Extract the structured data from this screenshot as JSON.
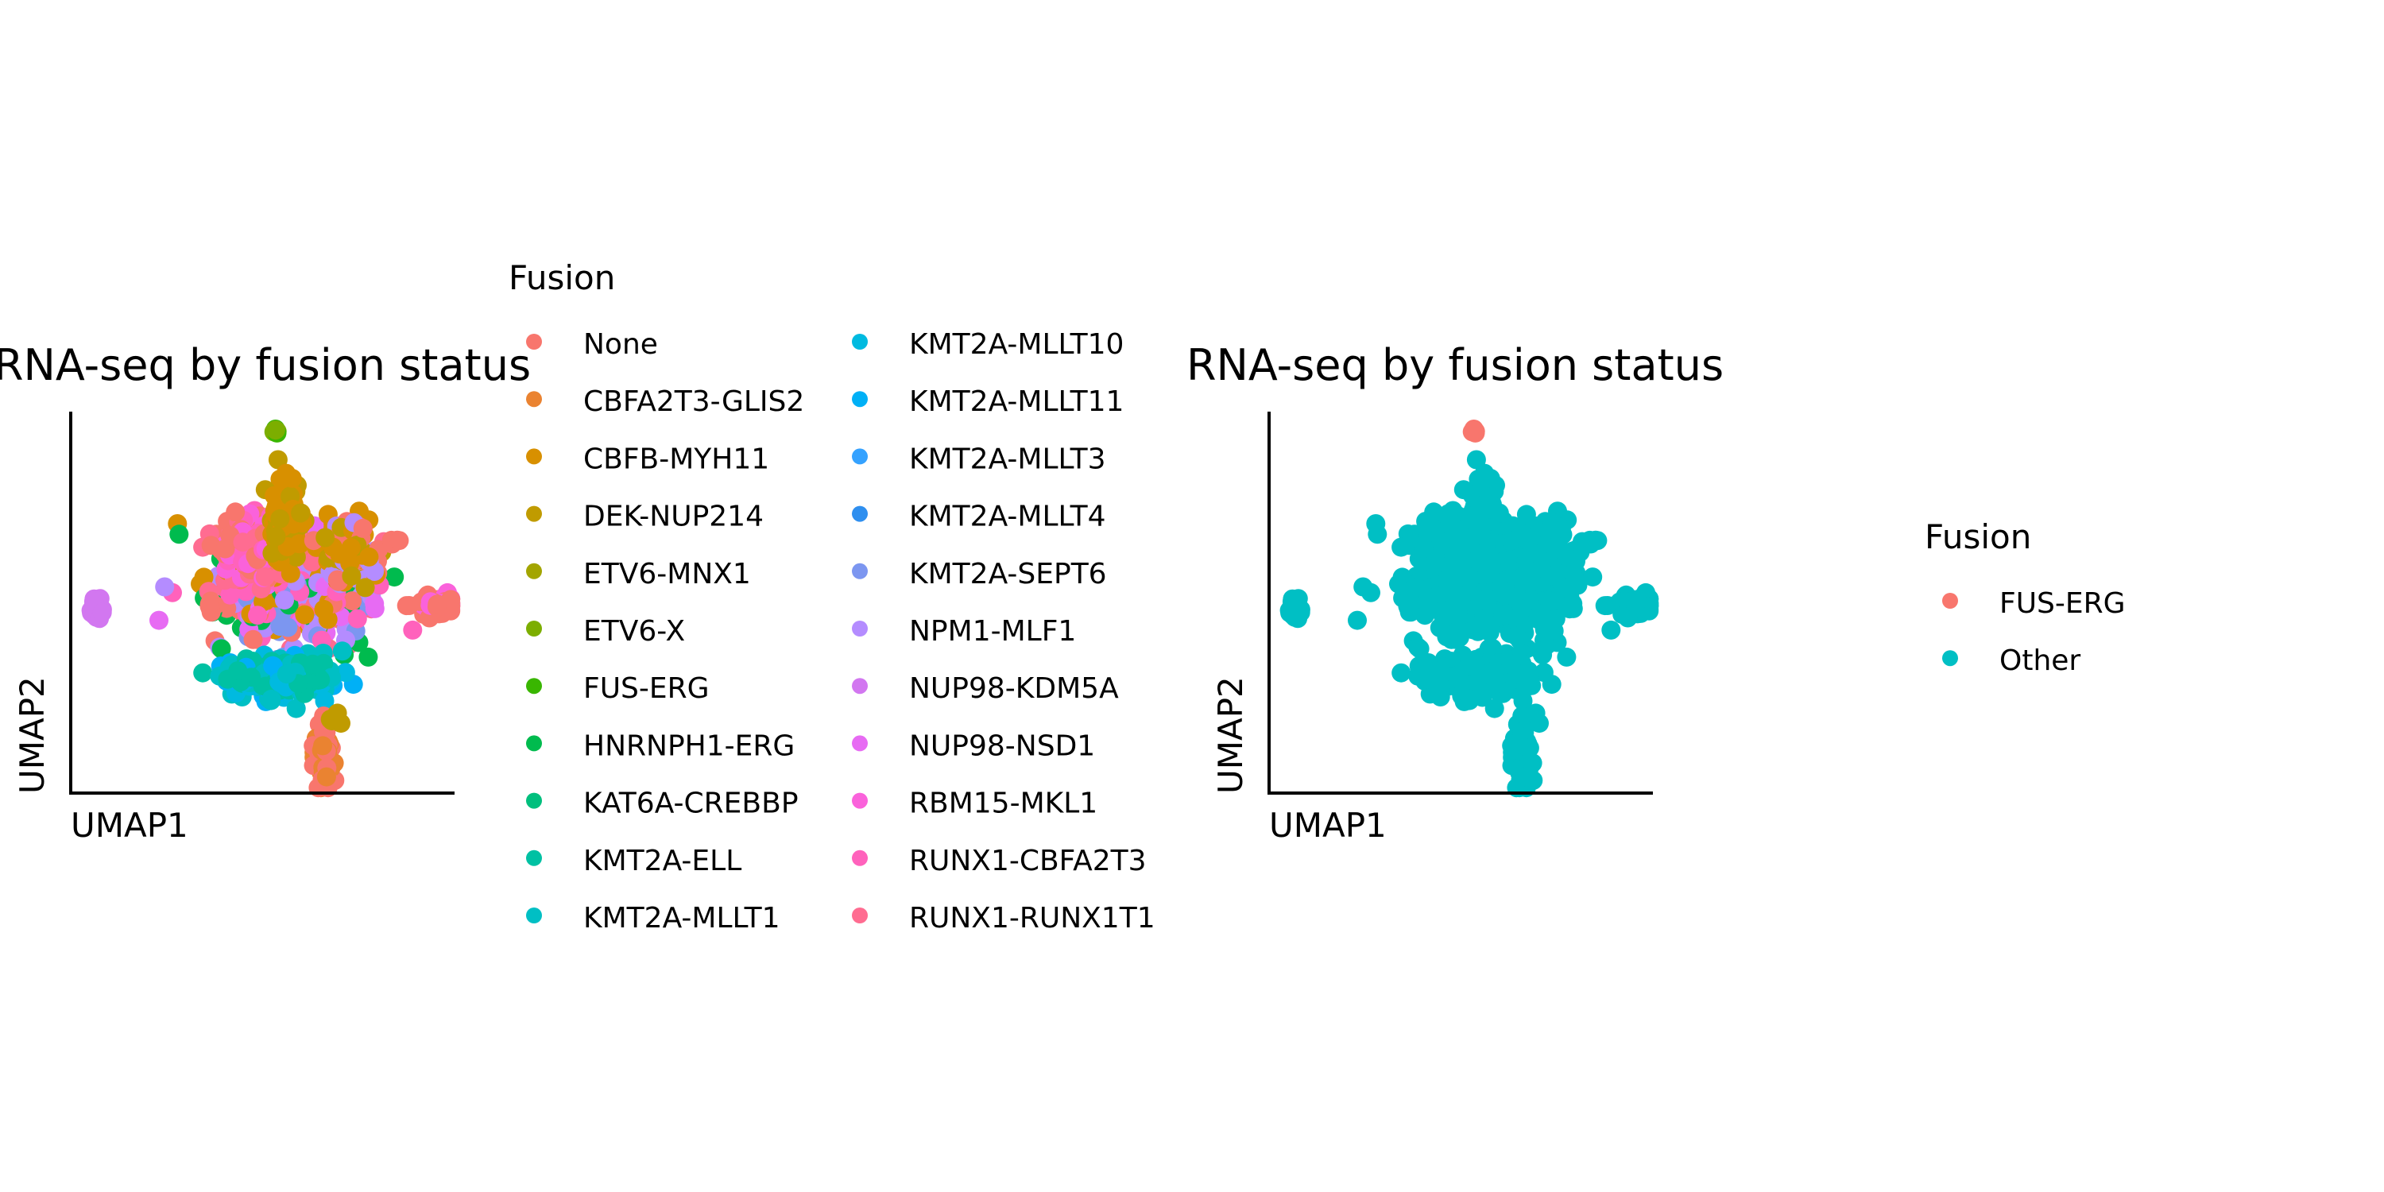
{
  "chart_data": [
    {
      "type": "scatter",
      "title": "RNA-seq by fusion status",
      "xlabel": "UMAP1",
      "ylabel": "UMAP2",
      "axis_ticks": false,
      "grid": false,
      "legend": {
        "title": "Fusion",
        "placement": "right",
        "columns": 2,
        "entries": [
          {
            "label": "None",
            "color": "#F8766D"
          },
          {
            "label": "CBFA2T3-GLIS2",
            "color": "#EA8331"
          },
          {
            "label": "CBFB-MYH11",
            "color": "#D89000"
          },
          {
            "label": "DEK-NUP214",
            "color": "#C09B00"
          },
          {
            "label": "ETV6-MNX1",
            "color": "#A3A500"
          },
          {
            "label": "ETV6-X",
            "color": "#7CAE00"
          },
          {
            "label": "FUS-ERG",
            "color": "#39B600"
          },
          {
            "label": "HNRNPH1-ERG",
            "color": "#00BB4E"
          },
          {
            "label": "KAT6A-CREBBP",
            "color": "#00BF7D"
          },
          {
            "label": "KMT2A-ELL",
            "color": "#00C1A3"
          },
          {
            "label": "KMT2A-MLLT1",
            "color": "#00BFC4"
          },
          {
            "label": "KMT2A-MLLT10",
            "color": "#00BAE0"
          },
          {
            "label": "KMT2A-MLLT11",
            "color": "#00B0F6"
          },
          {
            "label": "KMT2A-MLLT3",
            "color": "#35A2FF"
          },
          {
            "label": "KMT2A-MLLT4",
            "color": "#2F8FEF"
          },
          {
            "label": "KMT2A-SEPT6",
            "color": "#7C96F0"
          },
          {
            "label": "NPM1-MLF1",
            "color": "#B48CFF"
          },
          {
            "label": "NUP98-KDM5A",
            "color": "#D277F0"
          },
          {
            "label": "NUP98-NSD1",
            "color": "#E76BF3"
          },
          {
            "label": "RBM15-MKL1",
            "color": "#FA62DB"
          },
          {
            "label": "RUNX1-CBFA2T3",
            "color": "#FF62BC"
          },
          {
            "label": "RUNX1-RUNX1T1",
            "color": "#FF6C91"
          }
        ]
      },
      "clusters": [
        {
          "name": "main",
          "x": 0.57,
          "y": 0.55,
          "sx": 0.1,
          "sy": 0.08,
          "n": 560,
          "colors": [
            "#F8766D",
            "#FF6C91",
            "#FF62BC",
            "#D89000",
            "#00BB4E",
            "#7C96F0",
            "#B48CFF",
            "#E76BF3"
          ]
        },
        {
          "name": "top-left",
          "x": 0.48,
          "y": 0.65,
          "sx": 0.05,
          "sy": 0.04,
          "n": 200,
          "colors": [
            "#FF6C91",
            "#F8766D",
            "#FF62BC",
            "#FA62DB"
          ]
        },
        {
          "name": "top-mid",
          "x": 0.56,
          "y": 0.72,
          "sx": 0.02,
          "sy": 0.05,
          "n": 120,
          "colors": [
            "#D89000",
            "#C09B00"
          ]
        },
        {
          "name": "top-right",
          "x": 0.73,
          "y": 0.63,
          "sx": 0.04,
          "sy": 0.04,
          "n": 90,
          "colors": [
            "#F8766D",
            "#C09B00",
            "#D89000",
            "#B48CFF"
          ]
        },
        {
          "name": "bottom",
          "x": 0.54,
          "y": 0.3,
          "sx": 0.07,
          "sy": 0.025,
          "n": 240,
          "colors": [
            "#00BAE0",
            "#00B0F6",
            "#00BFC4",
            "#00C1A3"
          ]
        },
        {
          "name": "tail",
          "x": 0.66,
          "y": 0.1,
          "sx": 0.012,
          "sy": 0.05,
          "n": 60,
          "colors": [
            "#EA8331",
            "#F8766D"
          ]
        },
        {
          "name": "right",
          "x": 0.96,
          "y": 0.49,
          "sx": 0.035,
          "sy": 0.015,
          "n": 80,
          "colors": [
            "#F8766D",
            "#FA62DB"
          ]
        },
        {
          "name": "left",
          "x": 0.06,
          "y": 0.48,
          "sx": 0.01,
          "sy": 0.012,
          "n": 25,
          "colors": [
            "#D277F0"
          ]
        },
        {
          "name": "mid-left",
          "x": 0.36,
          "y": 0.49,
          "sx": 0.01,
          "sy": 0.01,
          "n": 10,
          "colors": [
            "#F8766D"
          ]
        },
        {
          "name": "outlier-top",
          "x": 0.53,
          "y": 0.95,
          "sx": 0.006,
          "sy": 0.004,
          "n": 6,
          "colors": [
            "#7CAE00",
            "#39B600"
          ]
        },
        {
          "name": "outlier-right",
          "x": 0.84,
          "y": 0.66,
          "sx": 0.008,
          "sy": 0.006,
          "n": 5,
          "colors": [
            "#F8766D"
          ]
        },
        {
          "name": "outlier-bottom",
          "x": 0.69,
          "y": 0.19,
          "sx": 0.008,
          "sy": 0.008,
          "n": 6,
          "colors": [
            "#C09B00"
          ]
        }
      ]
    },
    {
      "type": "scatter",
      "title": "RNA-seq by fusion status",
      "xlabel": "UMAP1",
      "ylabel": "UMAP2",
      "axis_ticks": false,
      "grid": false,
      "legend": {
        "title": "Fusion",
        "placement": "right",
        "columns": 1,
        "entries": [
          {
            "label": "FUS-ERG",
            "color": "#F8766D"
          },
          {
            "label": "Other",
            "color": "#00BFC4"
          }
        ]
      },
      "clusters": [
        {
          "name": "main",
          "x": 0.57,
          "y": 0.55,
          "sx": 0.1,
          "sy": 0.08,
          "n": 560,
          "colors": [
            "#00BFC4"
          ]
        },
        {
          "name": "top-left",
          "x": 0.48,
          "y": 0.65,
          "sx": 0.05,
          "sy": 0.04,
          "n": 200,
          "colors": [
            "#00BFC4"
          ]
        },
        {
          "name": "top-mid",
          "x": 0.56,
          "y": 0.72,
          "sx": 0.02,
          "sy": 0.05,
          "n": 120,
          "colors": [
            "#00BFC4"
          ]
        },
        {
          "name": "top-right",
          "x": 0.73,
          "y": 0.63,
          "sx": 0.04,
          "sy": 0.04,
          "n": 90,
          "colors": [
            "#00BFC4"
          ]
        },
        {
          "name": "bottom",
          "x": 0.54,
          "y": 0.3,
          "sx": 0.07,
          "sy": 0.025,
          "n": 240,
          "colors": [
            "#00BFC4"
          ]
        },
        {
          "name": "tail",
          "x": 0.66,
          "y": 0.1,
          "sx": 0.012,
          "sy": 0.05,
          "n": 60,
          "colors": [
            "#00BFC4"
          ]
        },
        {
          "name": "right",
          "x": 0.96,
          "y": 0.49,
          "sx": 0.035,
          "sy": 0.015,
          "n": 80,
          "colors": [
            "#00BFC4"
          ]
        },
        {
          "name": "left",
          "x": 0.06,
          "y": 0.48,
          "sx": 0.01,
          "sy": 0.012,
          "n": 25,
          "colors": [
            "#00BFC4"
          ]
        },
        {
          "name": "mid-left",
          "x": 0.36,
          "y": 0.49,
          "sx": 0.01,
          "sy": 0.01,
          "n": 10,
          "colors": [
            "#00BFC4"
          ]
        },
        {
          "name": "outlier-top",
          "x": 0.53,
          "y": 0.95,
          "sx": 0.006,
          "sy": 0.004,
          "n": 6,
          "colors": [
            "#F8766D"
          ]
        },
        {
          "name": "outlier-right",
          "x": 0.84,
          "y": 0.66,
          "sx": 0.008,
          "sy": 0.006,
          "n": 5,
          "colors": [
            "#00BFC4"
          ]
        },
        {
          "name": "outlier-bottom",
          "x": 0.69,
          "y": 0.19,
          "sx": 0.008,
          "sy": 0.008,
          "n": 6,
          "colors": [
            "#00BFC4"
          ]
        }
      ]
    }
  ]
}
